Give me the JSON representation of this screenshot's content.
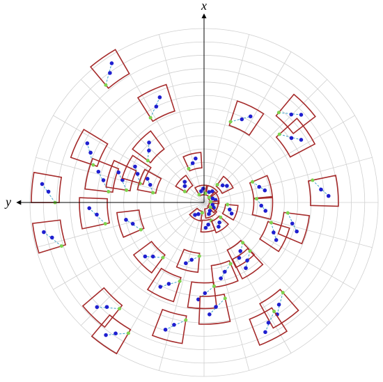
{
  "axes": {
    "vertical_label": "x",
    "horizontal_label": "y"
  }
}
